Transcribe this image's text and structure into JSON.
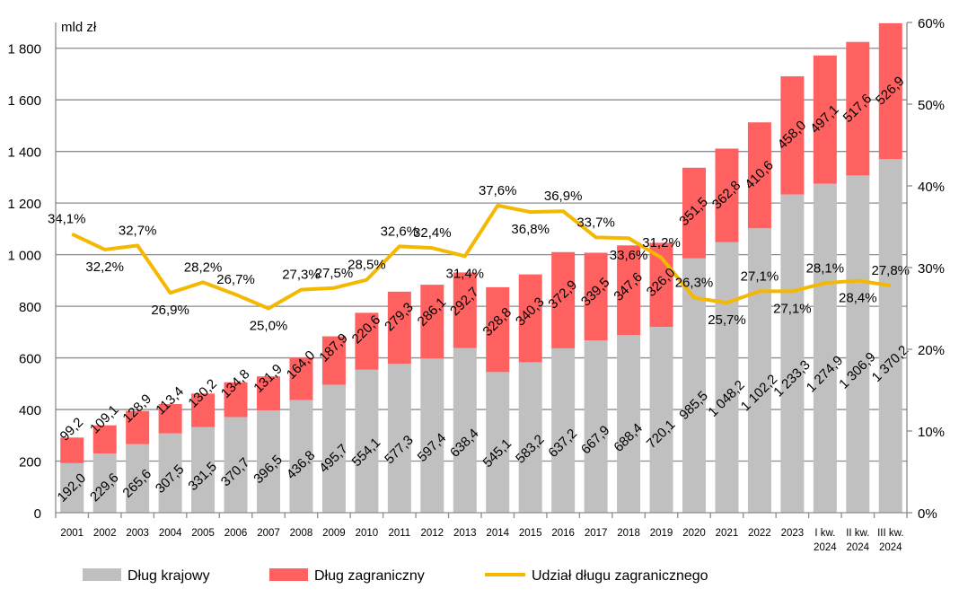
{
  "chart_data": {
    "type": "bar",
    "stacked": true,
    "ylabel": "mld zł",
    "ylim": [
      0,
      1900
    ],
    "y_ticks": [
      "0",
      "200",
      "400",
      "600",
      "800",
      "1 000",
      "1 200",
      "1 400",
      "1 600",
      "1 800"
    ],
    "y2lim": [
      0,
      60
    ],
    "y2_ticks": [
      "0%",
      "10%",
      "20%",
      "30%",
      "40%",
      "50%",
      "60%"
    ],
    "grid": true,
    "legend_placement": "bottom",
    "categories": [
      "2001",
      "2002",
      "2003",
      "2004",
      "2005",
      "2006",
      "2007",
      "2008",
      "2009",
      "2010",
      "2011",
      "2012",
      "2013",
      "2014",
      "2015",
      "2016",
      "2017",
      "2018",
      "2019",
      "2020",
      "2021",
      "2022",
      "2023",
      "I kw. 2024",
      "II kw. 2024",
      "III kw. 2024"
    ],
    "series": [
      {
        "name": "Dług krajowy",
        "type": "bar",
        "color": "#c0c0c0",
        "axis": "left",
        "values": [
          192.0,
          229.6,
          265.6,
          307.5,
          331.5,
          370.7,
          396.5,
          436.8,
          495.7,
          554.1,
          577.3,
          597.4,
          638.4,
          545.1,
          583.2,
          637.2,
          667.9,
          688.4,
          720.1,
          985.5,
          1048.2,
          1102.2,
          1233.3,
          1274.9,
          1306.9,
          1370.2
        ],
        "labels": [
          "192,0",
          "229,6",
          "265,6",
          "307,5",
          "331,5",
          "370,7",
          "396,5",
          "436,8",
          "495,7",
          "554,1",
          "577,3",
          "597,4",
          "638,4",
          "545,1",
          "583,2",
          "637,2",
          "667,9",
          "688,4",
          "720,1",
          "985,5",
          "1 048,2",
          "1 102,2",
          "1 233,3",
          "1 274,9",
          "1 306,9",
          "1 370,2"
        ]
      },
      {
        "name": "Dług zagraniczny",
        "type": "bar",
        "color": "#ff6161",
        "axis": "left",
        "values": [
          99.2,
          109.1,
          128.9,
          113.4,
          130.2,
          134.8,
          131.9,
          164.0,
          187.9,
          220.6,
          279.3,
          286.1,
          292.7,
          328.8,
          340.3,
          372.9,
          339.5,
          347.6,
          326.0,
          351.5,
          362.8,
          410.6,
          458.0,
          497.1,
          517.6,
          526.9
        ],
        "labels": [
          "99,2",
          "109,1",
          "128,9",
          "113,4",
          "130,2",
          "134,8",
          "131,9",
          "164,0",
          "187,9",
          "220,6",
          "279,3",
          "286,1",
          "292,7",
          "328,8",
          "340,3",
          "372,9",
          "339,5",
          "347,6",
          "326,0",
          "351,5",
          "362,8",
          "410,6",
          "458,0",
          "497,1",
          "517,6",
          "526,9"
        ]
      },
      {
        "name": "Udział długu zagranicznego",
        "type": "line",
        "color": "#f5b800",
        "axis": "right",
        "values": [
          34.1,
          32.2,
          32.7,
          26.9,
          28.2,
          26.7,
          25.0,
          27.3,
          27.5,
          28.5,
          32.6,
          32.4,
          31.4,
          37.6,
          36.8,
          36.9,
          33.7,
          33.6,
          31.2,
          26.3,
          25.7,
          27.1,
          27.1,
          28.1,
          28.4,
          27.8
        ],
        "labels": [
          "34,1%",
          "32,2%",
          "32,7%",
          "26,9%",
          "28,2%",
          "26,7%",
          "25,0%",
          "27,3%",
          "27,5%",
          "28,5%",
          "32,6%",
          "32,4%",
          "31,4%",
          "37,6%",
          "36,8%",
          "36,9%",
          "33,7%",
          "33,6%",
          "31,2%",
          "26,3%",
          "25,7%",
          "27,1%",
          "27,1%",
          "28,1%",
          "28,4%",
          "27,8%"
        ]
      }
    ]
  }
}
